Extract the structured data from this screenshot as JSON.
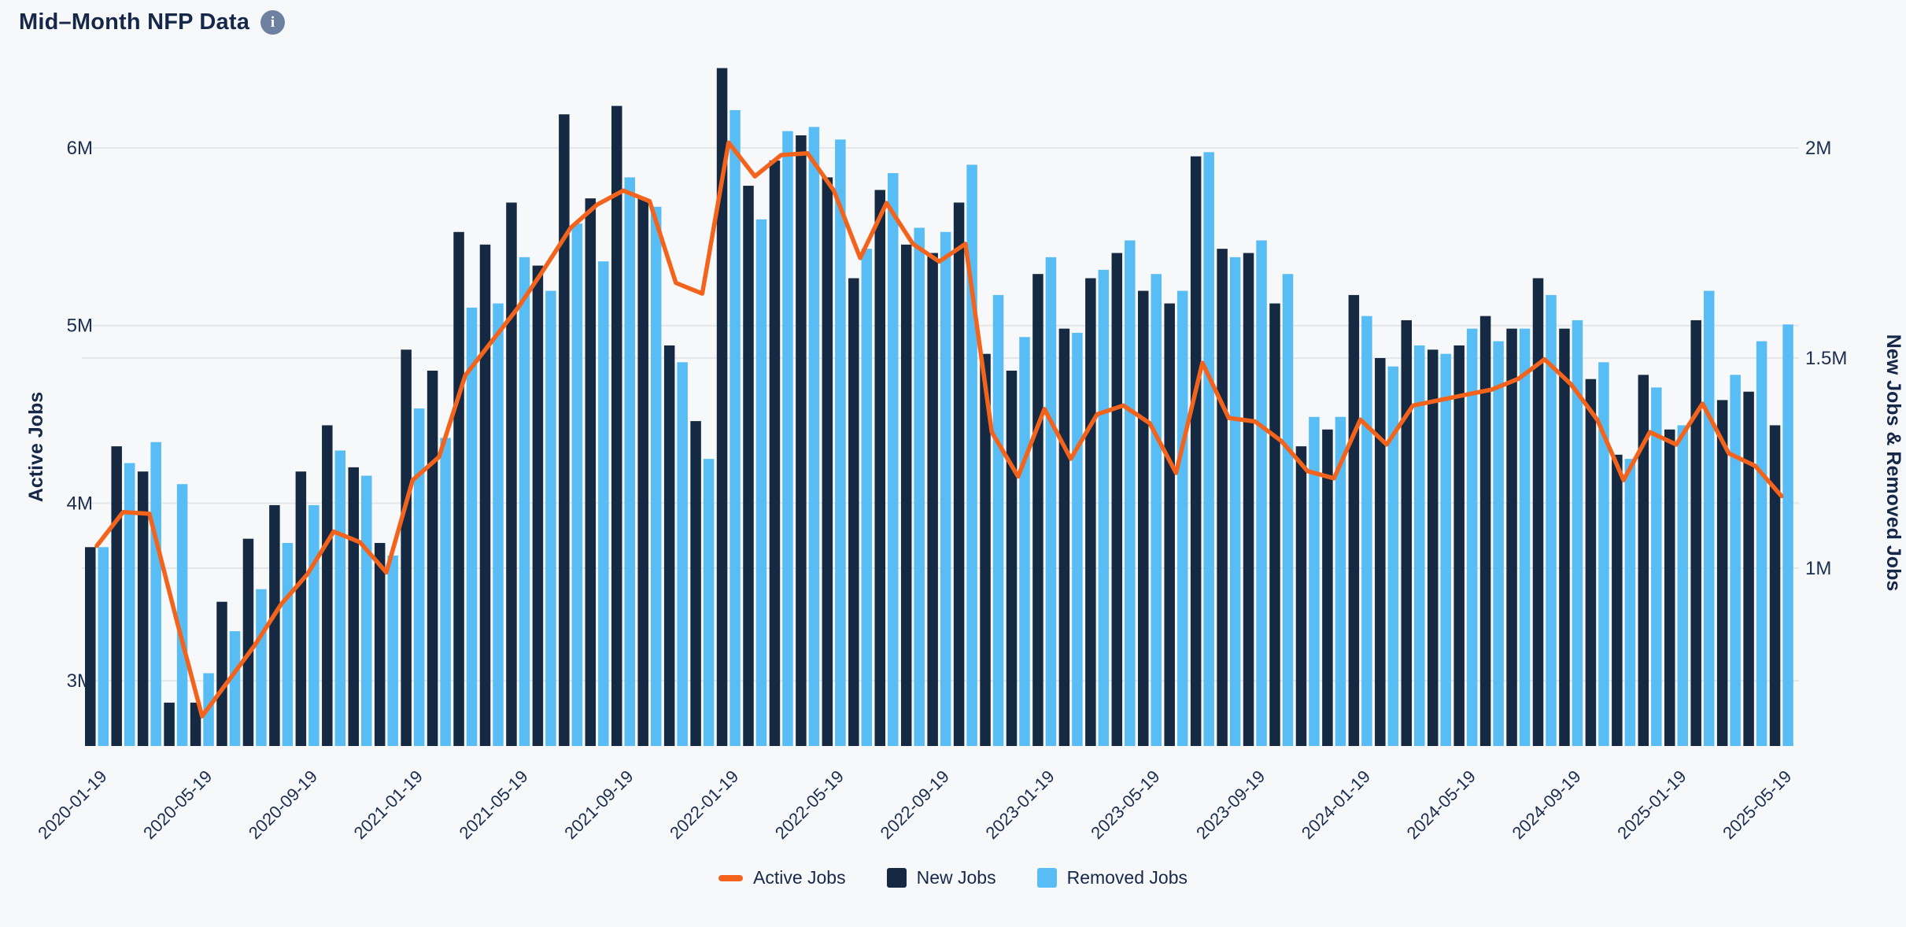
{
  "page": {
    "title": "Mid–Month NFP Data",
    "background": "#f7f8f9"
  },
  "header": {
    "info_icon_glyph": "i"
  },
  "chart_data": {
    "type": "bar",
    "subtype": "grouped-bars-with-line-overlay",
    "title": "Mid–Month NFP Data",
    "x_tick_labels": [
      "2020-01-19",
      "2020-05-19",
      "2020-09-19",
      "2021-01-19",
      "2021-05-19",
      "2021-09-19",
      "2022-01-19",
      "2022-05-19",
      "2022-09-19",
      "2023-01-19",
      "2023-05-19",
      "2023-09-19",
      "2024-01-19",
      "2024-05-19",
      "2024-09-19",
      "2025-01-19",
      "2025-05-19"
    ],
    "x_tick_every": 4,
    "n_points": 65,
    "x_start": "2020-01-19",
    "x_end": "2025-05-19",
    "grid": "horizontal-on",
    "legend_position": "bottom-center",
    "left_axis": {
      "title": "Active Jobs",
      "tick_labels": [
        "6M",
        "5M",
        "4M",
        "3M"
      ],
      "tick_values": [
        6,
        5,
        4,
        3
      ],
      "range": [
        2.63,
        6.56
      ],
      "unit": "millions"
    },
    "right_axis": {
      "title": "New Jobs & Removed Jobs",
      "tick_labels": [
        "2M",
        "1.5M",
        "1M"
      ],
      "tick_values": [
        2,
        1.5,
        1
      ],
      "range": [
        0.577,
        2.235
      ],
      "unit": "millions"
    },
    "series": [
      {
        "name": "Active Jobs",
        "type": "line",
        "axis": "left",
        "color": "#f4631c",
        "values": [
          3.76,
          3.95,
          3.94,
          3.36,
          2.8,
          3.0,
          3.2,
          3.43,
          3.6,
          3.84,
          3.78,
          3.61,
          4.13,
          4.26,
          4.72,
          4.91,
          5.1,
          5.32,
          5.55,
          5.68,
          5.76,
          5.7,
          5.24,
          5.18,
          6.03,
          5.84,
          5.96,
          5.97,
          5.76,
          5.38,
          5.69,
          5.46,
          5.36,
          5.46,
          4.4,
          4.15,
          4.53,
          4.25,
          4.5,
          4.55,
          4.45,
          4.17,
          4.79,
          4.48,
          4.46,
          4.35,
          4.18,
          4.14,
          4.47,
          4.33,
          4.55,
          4.58,
          4.61,
          4.64,
          4.7,
          4.81,
          4.67,
          4.47,
          4.13,
          4.4,
          4.33,
          4.56,
          4.28,
          4.21,
          4.04
        ]
      },
      {
        "name": "New Jobs",
        "type": "bar",
        "axis": "right",
        "color": "#152a42",
        "values": [
          1.05,
          1.29,
          1.23,
          0.68,
          0.68,
          0.92,
          1.07,
          1.15,
          1.23,
          1.34,
          1.24,
          1.06,
          1.52,
          1.47,
          1.8,
          1.77,
          1.87,
          1.72,
          2.08,
          1.88,
          2.1,
          1.88,
          1.53,
          1.35,
          2.19,
          1.91,
          1.97,
          2.03,
          1.93,
          1.69,
          1.9,
          1.77,
          1.75,
          1.87,
          1.51,
          1.47,
          1.7,
          1.57,
          1.69,
          1.75,
          1.66,
          1.63,
          1.98,
          1.76,
          1.75,
          1.63,
          1.29,
          1.33,
          1.65,
          1.5,
          1.59,
          1.52,
          1.53,
          1.6,
          1.57,
          1.69,
          1.57,
          1.45,
          1.27,
          1.46,
          1.33,
          1.59,
          1.4,
          1.42,
          1.34
        ]
      },
      {
        "name": "Removed Jobs",
        "type": "bar",
        "axis": "right",
        "color": "#57bdf4",
        "values": [
          1.05,
          1.25,
          1.3,
          1.2,
          0.75,
          0.85,
          0.95,
          1.06,
          1.15,
          1.28,
          1.22,
          1.03,
          1.38,
          1.31,
          1.62,
          1.63,
          1.74,
          1.66,
          1.82,
          1.73,
          1.93,
          1.86,
          1.49,
          1.26,
          2.09,
          1.83,
          2.04,
          2.05,
          2.02,
          1.76,
          1.94,
          1.81,
          1.8,
          1.96,
          1.65,
          1.55,
          1.74,
          1.56,
          1.71,
          1.78,
          1.7,
          1.66,
          1.99,
          1.74,
          1.78,
          1.7,
          1.36,
          1.36,
          1.6,
          1.48,
          1.53,
          1.51,
          1.57,
          1.54,
          1.57,
          1.65,
          1.59,
          1.49,
          1.26,
          1.43,
          1.34,
          1.66,
          1.46,
          1.54,
          1.58
        ]
      }
    ],
    "colors": {
      "grid": "#e5e6e9",
      "text": "#1b2d50",
      "background": "#f7f8f9"
    }
  },
  "legend": {
    "items": [
      {
        "label": "Active Jobs",
        "color": "#f4631c",
        "shape": "dash"
      },
      {
        "label": "New Jobs",
        "color": "#152a42",
        "shape": "square"
      },
      {
        "label": "Removed Jobs",
        "color": "#57bdf4",
        "shape": "square"
      }
    ]
  }
}
